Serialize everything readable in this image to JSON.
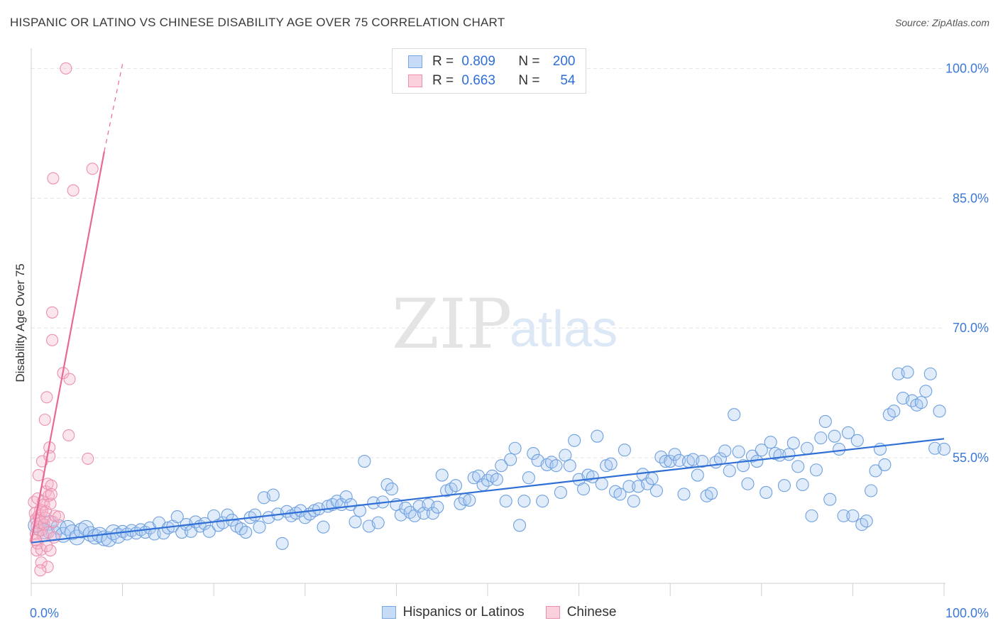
{
  "title": "HISPANIC OR LATINO VS CHINESE DISABILITY AGE OVER 75 CORRELATION CHART",
  "source": "Source: ZipAtlas.com",
  "watermark": {
    "zip": "ZIP",
    "atlas": "atlas"
  },
  "legend": {
    "rows": [
      {
        "r_label": "R =",
        "r_value": "0.809",
        "n_label": "N =",
        "n_value": "200",
        "color": "#a8c8f0"
      },
      {
        "r_label": "R =",
        "r_value": "0.663",
        "n_label": "N =",
        "n_value": "54",
        "color": "#f6b8cb"
      }
    ]
  },
  "bottom_legend": [
    {
      "label": "Hispanics or Latinos",
      "color": "#a8c8f0"
    },
    {
      "label": "Chinese",
      "color": "#f6b8cb"
    }
  ],
  "chart_data": {
    "type": "scatter",
    "title": "HISPANIC OR LATINO VS CHINESE DISABILITY AGE OVER 75 CORRELATION CHART",
    "xlabel": "",
    "ylabel": "Disability Age Over 75",
    "xlim": [
      0,
      100
    ],
    "ylim": [
      40.5,
      102
    ],
    "x_tick_labels": [
      {
        "value": 0,
        "label": "0.0%"
      },
      {
        "value": 100,
        "label": "100.0%"
      }
    ],
    "y_tick_labels": [
      {
        "value": 55,
        "label": "55.0%"
      },
      {
        "value": 70,
        "label": "70.0%"
      },
      {
        "value": 85,
        "label": "85.0%"
      },
      {
        "value": 100,
        "label": "100.0%"
      }
    ],
    "grid": true,
    "legend_position": "top-center",
    "series": [
      {
        "name": "Hispanics or Latinos",
        "color": "#a8c8f0",
        "stroke": "#7aa8e0",
        "trend": {
          "x": [
            0,
            100
          ],
          "y": [
            45.2,
            57.2
          ],
          "color": "#2f6fd6"
        },
        "points": [
          [
            0.5,
            47.2
          ],
          [
            1,
            46.8
          ],
          [
            1.5,
            46.5
          ],
          [
            2,
            47.5
          ],
          [
            2.5,
            46.3
          ],
          [
            3,
            47
          ],
          [
            3.5,
            46.1
          ],
          [
            4,
            46.9
          ],
          [
            4.5,
            46.4
          ],
          [
            5,
            45.8
          ],
          [
            5.5,
            46.6
          ],
          [
            6,
            46.9
          ],
          [
            6.5,
            46.2
          ],
          [
            7,
            45.9
          ],
          [
            7.5,
            46.1
          ],
          [
            8,
            45.7
          ],
          [
            8.5,
            45.6
          ],
          [
            9,
            46.4
          ],
          [
            9.5,
            46.0
          ],
          [
            10,
            46.5
          ],
          [
            10.5,
            46.2
          ],
          [
            11,
            46.6
          ],
          [
            11.5,
            46.3
          ],
          [
            12,
            46.7
          ],
          [
            12.5,
            46.4
          ],
          [
            13,
            46.9
          ],
          [
            13.5,
            46.2
          ],
          [
            14,
            47.5
          ],
          [
            14.5,
            46.3
          ],
          [
            15,
            46.9
          ],
          [
            15.5,
            47.1
          ],
          [
            16,
            48.2
          ],
          [
            16.5,
            46.4
          ],
          [
            17,
            47.3
          ],
          [
            17.5,
            46.5
          ],
          [
            18,
            47.6
          ],
          [
            18.5,
            47.1
          ],
          [
            19,
            47.4
          ],
          [
            19.5,
            46.5
          ],
          [
            20,
            48.3
          ],
          [
            20.5,
            47.2
          ],
          [
            21,
            47.5
          ],
          [
            21.5,
            48.4
          ],
          [
            22,
            47.8
          ],
          [
            22.5,
            47.1
          ],
          [
            23,
            46.8
          ],
          [
            23.5,
            46.4
          ],
          [
            24,
            48.1
          ],
          [
            24.5,
            48.4
          ],
          [
            25,
            47.0
          ],
          [
            25.5,
            50.4
          ],
          [
            26,
            48.1
          ],
          [
            26.5,
            50.7
          ],
          [
            27,
            48.5
          ],
          [
            27.5,
            45.1
          ],
          [
            28,
            48.8
          ],
          [
            28.5,
            48.3
          ],
          [
            29,
            48.6
          ],
          [
            29.5,
            48.9
          ],
          [
            30,
            48.1
          ],
          [
            30.5,
            48.5
          ],
          [
            31,
            48.9
          ],
          [
            31.5,
            49.1
          ],
          [
            32,
            47.0
          ],
          [
            32.5,
            49.4
          ],
          [
            33,
            49.6
          ],
          [
            33.5,
            50.0
          ],
          [
            34,
            49.6
          ],
          [
            34.5,
            50.5
          ],
          [
            35,
            49.6
          ],
          [
            35.5,
            47.6
          ],
          [
            36,
            48.9
          ],
          [
            36.5,
            54.6
          ],
          [
            37,
            47.1
          ],
          [
            37.5,
            49.8
          ],
          [
            38,
            47.5
          ],
          [
            38.5,
            49.9
          ],
          [
            39,
            51.9
          ],
          [
            39.5,
            51.4
          ],
          [
            40,
            49.6
          ],
          [
            40.5,
            48.4
          ],
          [
            41,
            49.2
          ],
          [
            41.5,
            48.7
          ],
          [
            42,
            48.3
          ],
          [
            42.5,
            49.4
          ],
          [
            43,
            48.6
          ],
          [
            43.5,
            49.6
          ],
          [
            44,
            48.6
          ],
          [
            44.5,
            49.3
          ],
          [
            45,
            53.0
          ],
          [
            45.5,
            51.2
          ],
          [
            46,
            51.4
          ],
          [
            46.5,
            51.8
          ],
          [
            47,
            49.7
          ],
          [
            47.5,
            50.2
          ],
          [
            48,
            50.1
          ],
          [
            48.5,
            52.7
          ],
          [
            49,
            52.9
          ],
          [
            49.5,
            51.9
          ],
          [
            50,
            52.4
          ],
          [
            50.5,
            52.9
          ],
          [
            51,
            52.5
          ],
          [
            51.5,
            54.1
          ],
          [
            52,
            50.0
          ],
          [
            52.5,
            54.8
          ],
          [
            53,
            56.1
          ],
          [
            53.5,
            47.2
          ],
          [
            54,
            50.0
          ],
          [
            54.5,
            52.7
          ],
          [
            55,
            55.5
          ],
          [
            55.5,
            54.7
          ],
          [
            56,
            50.0
          ],
          [
            56.5,
            54.2
          ],
          [
            57,
            54.5
          ],
          [
            57.5,
            54.1
          ],
          [
            58,
            51.0
          ],
          [
            58.5,
            55.3
          ],
          [
            59,
            54.1
          ],
          [
            59.5,
            57.0
          ],
          [
            60,
            52.5
          ],
          [
            60.5,
            51.4
          ],
          [
            61,
            53.0
          ],
          [
            61.5,
            52.8
          ],
          [
            62,
            57.5
          ],
          [
            62.5,
            52.0
          ],
          [
            63,
            54.1
          ],
          [
            63.5,
            54.3
          ],
          [
            64,
            51.1
          ],
          [
            64.5,
            50.8
          ],
          [
            65,
            55.9
          ],
          [
            65.5,
            51.7
          ],
          [
            66,
            50.0
          ],
          [
            66.5,
            51.7
          ],
          [
            67,
            53.1
          ],
          [
            67.5,
            52.0
          ],
          [
            68,
            52.6
          ],
          [
            68.5,
            51.2
          ],
          [
            69,
            55.1
          ],
          [
            69.5,
            54.6
          ],
          [
            70,
            54.6
          ],
          [
            70.5,
            55.4
          ],
          [
            71,
            54.7
          ],
          [
            71.5,
            50.8
          ],
          [
            72,
            54.6
          ],
          [
            72.5,
            54.8
          ],
          [
            73,
            53.0
          ],
          [
            73.5,
            54.6
          ],
          [
            74,
            50.6
          ],
          [
            74.5,
            50.9
          ],
          [
            75,
            54.5
          ],
          [
            75.5,
            54.9
          ],
          [
            76,
            55.8
          ],
          [
            76.5,
            53.5
          ],
          [
            77,
            60.0
          ],
          [
            77.5,
            55.7
          ],
          [
            78,
            54.1
          ],
          [
            78.5,
            52.0
          ],
          [
            79,
            55.2
          ],
          [
            79.5,
            54.6
          ],
          [
            80,
            55.9
          ],
          [
            80.5,
            51.0
          ],
          [
            81,
            56.8
          ],
          [
            81.5,
            55.5
          ],
          [
            82,
            55.3
          ],
          [
            82.5,
            51.8
          ],
          [
            83,
            55.4
          ],
          [
            83.5,
            56.7
          ],
          [
            84,
            54.0
          ],
          [
            84.5,
            51.9
          ],
          [
            85,
            56.1
          ],
          [
            85.5,
            48.3
          ],
          [
            86,
            53.6
          ],
          [
            86.5,
            57.3
          ],
          [
            87,
            59.2
          ],
          [
            87.5,
            50.2
          ],
          [
            88,
            57.5
          ],
          [
            88.5,
            56.0
          ],
          [
            89,
            48.3
          ],
          [
            89.5,
            57.9
          ],
          [
            90,
            48.3
          ],
          [
            90.5,
            57.0
          ],
          [
            91,
            47.3
          ],
          [
            91.5,
            47.7
          ],
          [
            92,
            51.2
          ],
          [
            92.5,
            53.5
          ],
          [
            93,
            56.0
          ],
          [
            93.5,
            54.2
          ],
          [
            94,
            60.0
          ],
          [
            94.5,
            60.4
          ],
          [
            95,
            64.7
          ],
          [
            95.5,
            61.9
          ],
          [
            96,
            64.9
          ],
          [
            96.5,
            61.6
          ],
          [
            97,
            61.1
          ],
          [
            97.5,
            61.4
          ],
          [
            98,
            62.7
          ],
          [
            98.5,
            64.7
          ],
          [
            99,
            56.1
          ],
          [
            99.5,
            60.4
          ],
          [
            100,
            56.0
          ]
        ]
      },
      {
        "name": "Chinese",
        "color": "#f6b8cb",
        "stroke": "#ee8fae",
        "trend": {
          "x": [
            0,
            8
          ],
          "y": [
            45.3,
            90.4
          ],
          "dashed_to": {
            "x": 10,
            "y": 100.5
          },
          "color": "#e8689a"
        },
        "points": [
          [
            0.3,
            49.9
          ],
          [
            0.4,
            48.6
          ],
          [
            0.5,
            47.9
          ],
          [
            0.5,
            46.2
          ],
          [
            0.6,
            44.3
          ],
          [
            0.6,
            47.1
          ],
          [
            0.7,
            45.1
          ],
          [
            0.7,
            50.3
          ],
          [
            0.8,
            53.0
          ],
          [
            0.8,
            48.3
          ],
          [
            0.9,
            46.6
          ],
          [
            0.9,
            48.0
          ],
          [
            1.0,
            49.0
          ],
          [
            1.0,
            47.5
          ],
          [
            1.1,
            44.4
          ],
          [
            1.1,
            42.9
          ],
          [
            1.2,
            48.9
          ],
          [
            1.2,
            54.6
          ],
          [
            1.3,
            50.0
          ],
          [
            1.3,
            46.0
          ],
          [
            1.4,
            49.6
          ],
          [
            1.4,
            47.3
          ],
          [
            1.5,
            59.4
          ],
          [
            1.5,
            48.1
          ],
          [
            1.6,
            51.1
          ],
          [
            1.6,
            48.8
          ],
          [
            1.7,
            62.0
          ],
          [
            1.7,
            44.8
          ],
          [
            1.8,
            42.4
          ],
          [
            1.8,
            52.0
          ],
          [
            1.9,
            46.4
          ],
          [
            1.9,
            50.6
          ],
          [
            2.0,
            56.2
          ],
          [
            2.0,
            55.2
          ],
          [
            2.1,
            44.3
          ],
          [
            2.1,
            49.7
          ],
          [
            2.2,
            51.8
          ],
          [
            2.2,
            50.8
          ],
          [
            2.3,
            71.8
          ],
          [
            2.3,
            68.6
          ],
          [
            2.4,
            87.3
          ],
          [
            2.4,
            47.6
          ],
          [
            2.5,
            45.8
          ],
          [
            2.6,
            48.3
          ],
          [
            3.0,
            48.2
          ],
          [
            3.5,
            64.8
          ],
          [
            3.8,
            100.0
          ],
          [
            4.1,
            57.6
          ],
          [
            4.2,
            64.1
          ],
          [
            4.6,
            85.9
          ],
          [
            6.2,
            54.9
          ],
          [
            6.7,
            88.4
          ],
          [
            1.0,
            42.0
          ],
          [
            0.5,
            45.5
          ]
        ]
      }
    ]
  }
}
